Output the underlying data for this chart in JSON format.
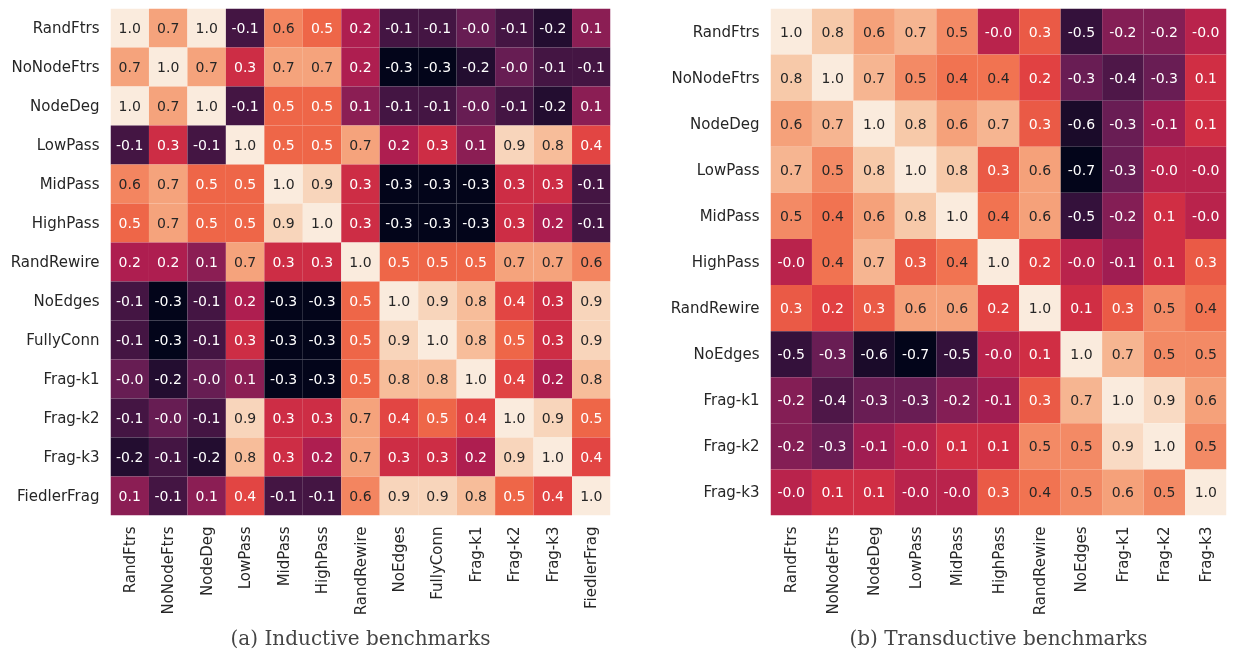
{
  "chart_data": [
    {
      "type": "heatmap",
      "title": "(a) Inductive benchmarks",
      "cell_labels": [
        [
          "1.0",
          "0.7",
          "1.0",
          "-0.1",
          "0.6",
          "0.5",
          "0.2",
          "-0.1",
          "-0.1",
          "-0.0",
          "-0.1",
          "-0.2",
          "0.1"
        ],
        [
          "0.7",
          "1.0",
          "0.7",
          "0.3",
          "0.7",
          "0.7",
          "0.2",
          "-0.3",
          "-0.3",
          "-0.2",
          "-0.0",
          "-0.1",
          "-0.1"
        ],
        [
          "1.0",
          "0.7",
          "1.0",
          "-0.1",
          "0.5",
          "0.5",
          "0.1",
          "-0.1",
          "-0.1",
          "-0.0",
          "-0.1",
          "-0.2",
          "0.1"
        ],
        [
          "-0.1",
          "0.3",
          "-0.1",
          "1.0",
          "0.5",
          "0.5",
          "0.7",
          "0.2",
          "0.3",
          "0.1",
          "0.9",
          "0.8",
          "0.4"
        ],
        [
          "0.6",
          "0.7",
          "0.5",
          "0.5",
          "1.0",
          "0.9",
          "0.3",
          "-0.3",
          "-0.3",
          "-0.3",
          "0.3",
          "0.3",
          "-0.1"
        ],
        [
          "0.5",
          "0.7",
          "0.5",
          "0.5",
          "0.9",
          "1.0",
          "0.3",
          "-0.3",
          "-0.3",
          "-0.3",
          "0.3",
          "0.2",
          "-0.1"
        ],
        [
          "0.2",
          "0.2",
          "0.1",
          "0.7",
          "0.3",
          "0.3",
          "1.0",
          "0.5",
          "0.5",
          "0.5",
          "0.7",
          "0.7",
          "0.6"
        ],
        [
          "-0.1",
          "-0.3",
          "-0.1",
          "0.2",
          "-0.3",
          "-0.3",
          "0.5",
          "1.0",
          "0.9",
          "0.8",
          "0.4",
          "0.3",
          "0.9"
        ],
        [
          "-0.1",
          "-0.3",
          "-0.1",
          "0.3",
          "-0.3",
          "-0.3",
          "0.5",
          "0.9",
          "1.0",
          "0.8",
          "0.5",
          "0.3",
          "0.9"
        ],
        [
          "-0.0",
          "-0.2",
          "-0.0",
          "0.1",
          "-0.3",
          "-0.3",
          "0.5",
          "0.8",
          "0.8",
          "1.0",
          "0.4",
          "0.2",
          "0.8"
        ],
        [
          "-0.1",
          "-0.0",
          "-0.1",
          "0.9",
          "0.3",
          "0.3",
          "0.7",
          "0.4",
          "0.5",
          "0.4",
          "1.0",
          "0.9",
          "0.5"
        ],
        [
          "-0.2",
          "-0.1",
          "-0.2",
          "0.8",
          "0.3",
          "0.2",
          "0.7",
          "0.3",
          "0.3",
          "0.2",
          "0.9",
          "1.0",
          "0.4"
        ],
        [
          "0.1",
          "-0.1",
          "0.1",
          "0.4",
          "-0.1",
          "-0.1",
          "0.6",
          "0.9",
          "0.9",
          "0.8",
          "0.5",
          "0.4",
          "1.0"
        ]
      ],
      "categories": [
        "RandFtrs",
        "NoNodeFtrs",
        "NodeDeg",
        "LowPass",
        "MidPass",
        "HighPass",
        "RandRewire",
        "NoEdges",
        "FullyConn",
        "Frag-k1",
        "Frag-k2",
        "Frag-k3",
        "FiedlerFrag"
      ],
      "y_categories": [
        "RandFtrs",
        "NoNodeFtrs",
        "NodeDeg",
        "LowPass",
        "MidPass",
        "HighPass",
        "RandRewire",
        "NoEdges",
        "FullyConn",
        "Frag-k1",
        "Frag-k2",
        "Frag-k3",
        "FiedlerFrag"
      ],
      "cells": [
        [
          1.0,
          0.7,
          1.0,
          -0.1,
          0.6,
          0.5,
          0.2,
          -0.1,
          -0.1,
          -0.0,
          -0.1,
          -0.2,
          0.1
        ],
        [
          0.7,
          1.0,
          0.7,
          0.3,
          0.7,
          0.7,
          0.2,
          -0.3,
          -0.3,
          -0.2,
          -0.0,
          -0.1,
          -0.1
        ],
        [
          1.0,
          0.7,
          1.0,
          -0.1,
          0.5,
          0.5,
          0.1,
          -0.1,
          -0.1,
          -0.0,
          -0.1,
          -0.2,
          0.1
        ],
        [
          -0.1,
          0.3,
          -0.1,
          1.0,
          0.5,
          0.5,
          0.7,
          0.2,
          0.3,
          0.1,
          0.9,
          0.8,
          0.4
        ],
        [
          0.6,
          0.7,
          0.5,
          0.5,
          1.0,
          0.9,
          0.3,
          -0.3,
          -0.3,
          -0.3,
          0.3,
          0.3,
          -0.1
        ],
        [
          0.5,
          0.7,
          0.5,
          0.5,
          0.9,
          1.0,
          0.3,
          -0.3,
          -0.3,
          -0.3,
          0.3,
          0.2,
          -0.1
        ],
        [
          0.2,
          0.2,
          0.1,
          0.7,
          0.3,
          0.3,
          1.0,
          0.5,
          0.5,
          0.5,
          0.7,
          0.7,
          0.6
        ],
        [
          -0.1,
          -0.3,
          -0.1,
          0.2,
          -0.3,
          -0.3,
          0.5,
          1.0,
          0.9,
          0.8,
          0.4,
          0.3,
          0.9
        ],
        [
          -0.1,
          -0.3,
          -0.1,
          0.3,
          -0.3,
          -0.3,
          0.5,
          0.9,
          1.0,
          0.8,
          0.5,
          0.3,
          0.9
        ],
        [
          -0.0,
          -0.2,
          -0.0,
          0.1,
          -0.3,
          -0.3,
          0.5,
          0.8,
          0.8,
          1.0,
          0.4,
          0.2,
          0.8
        ],
        [
          -0.1,
          -0.0,
          -0.1,
          0.9,
          0.3,
          0.3,
          0.7,
          0.4,
          0.5,
          0.4,
          1.0,
          0.9,
          0.5
        ],
        [
          -0.2,
          -0.1,
          -0.2,
          0.8,
          0.3,
          0.2,
          0.7,
          0.3,
          0.3,
          0.2,
          0.9,
          1.0,
          0.4
        ],
        [
          0.1,
          -0.1,
          0.1,
          0.4,
          -0.1,
          -0.1,
          0.6,
          0.9,
          0.9,
          0.8,
          0.5,
          0.4,
          1.0
        ]
      ]
    },
    {
      "type": "heatmap",
      "title": "(b) Transductive benchmarks",
      "cell_labels": [
        [
          "1.0",
          "0.8",
          "0.6",
          "0.7",
          "0.5",
          "-0.0",
          "0.3",
          "-0.5",
          "-0.2",
          "-0.2",
          "-0.0"
        ],
        [
          "0.8",
          "1.0",
          "0.7",
          "0.5",
          "0.4",
          "0.4",
          "0.2",
          "-0.3",
          "-0.4",
          "-0.3",
          "0.1"
        ],
        [
          "0.6",
          "0.7",
          "1.0",
          "0.8",
          "0.6",
          "0.7",
          "0.3",
          "-0.6",
          "-0.3",
          "-0.1",
          "0.1"
        ],
        [
          "0.7",
          "0.5",
          "0.8",
          "1.0",
          "0.8",
          "0.3",
          "0.6",
          "-0.7",
          "-0.3",
          "-0.0",
          "-0.0"
        ],
        [
          "0.5",
          "0.4",
          "0.6",
          "0.8",
          "1.0",
          "0.4",
          "0.6",
          "-0.5",
          "-0.2",
          "0.1",
          "-0.0"
        ],
        [
          "-0.0",
          "0.4",
          "0.7",
          "0.3",
          "0.4",
          "1.0",
          "0.2",
          "-0.0",
          "-0.1",
          "0.1",
          "0.3"
        ],
        [
          "0.3",
          "0.2",
          "0.3",
          "0.6",
          "0.6",
          "0.2",
          "1.0",
          "0.1",
          "0.3",
          "0.5",
          "0.4"
        ],
        [
          "-0.5",
          "-0.3",
          "-0.6",
          "-0.7",
          "-0.5",
          "-0.0",
          "0.1",
          "1.0",
          "0.7",
          "0.5",
          "0.5"
        ],
        [
          "-0.2",
          "-0.4",
          "-0.3",
          "-0.3",
          "-0.2",
          "-0.1",
          "0.3",
          "0.7",
          "1.0",
          "0.9",
          "0.6"
        ],
        [
          "-0.2",
          "-0.3",
          "-0.1",
          "-0.0",
          "0.1",
          "0.1",
          "0.5",
          "0.5",
          "0.9",
          "1.0",
          "0.5"
        ],
        [
          "-0.0",
          "0.1",
          "0.1",
          "-0.0",
          "-0.0",
          "0.3",
          "0.4",
          "0.5",
          "0.6",
          "0.5",
          "1.0"
        ]
      ],
      "categories": [
        "RandFtrs",
        "NoNodeFtrs",
        "NodeDeg",
        "LowPass",
        "MidPass",
        "HighPass",
        "RandRewire",
        "NoEdges",
        "Frag-k1",
        "Frag-k2",
        "Frag-k3"
      ],
      "y_categories": [
        "RandFtrs",
        "NoNodeFtrs",
        "NodeDeg",
        "LowPass",
        "MidPass",
        "HighPass",
        "RandRewire",
        "NoEdges",
        "Frag-k1",
        "Frag-k2",
        "Frag-k3"
      ],
      "cells": [
        [
          1.0,
          0.8,
          0.6,
          0.7,
          0.5,
          -0.0,
          0.3,
          -0.5,
          -0.2,
          -0.2,
          -0.0
        ],
        [
          0.8,
          1.0,
          0.7,
          0.5,
          0.4,
          0.4,
          0.2,
          -0.3,
          -0.4,
          -0.3,
          0.1
        ],
        [
          0.6,
          0.7,
          1.0,
          0.8,
          0.6,
          0.7,
          0.3,
          -0.6,
          -0.3,
          -0.1,
          0.1
        ],
        [
          0.7,
          0.5,
          0.8,
          1.0,
          0.8,
          0.3,
          0.6,
          -0.7,
          -0.3,
          -0.0,
          -0.0
        ],
        [
          0.5,
          0.4,
          0.6,
          0.8,
          1.0,
          0.4,
          0.6,
          -0.5,
          -0.2,
          0.1,
          -0.0
        ],
        [
          -0.0,
          0.4,
          0.7,
          0.3,
          0.4,
          1.0,
          0.2,
          -0.0,
          -0.1,
          0.1,
          0.3
        ],
        [
          0.3,
          0.2,
          0.3,
          0.6,
          0.6,
          0.2,
          1.0,
          0.1,
          0.3,
          0.5,
          0.4
        ],
        [
          -0.5,
          -0.3,
          -0.6,
          -0.7,
          -0.5,
          -0.0,
          0.1,
          1.0,
          0.7,
          0.5,
          0.5
        ],
        [
          -0.2,
          -0.4,
          -0.3,
          -0.3,
          -0.2,
          -0.1,
          0.3,
          0.7,
          1.0,
          0.9,
          0.6
        ],
        [
          -0.2,
          -0.3,
          -0.1,
          -0.0,
          0.1,
          0.1,
          0.5,
          0.5,
          0.9,
          1.0,
          0.5
        ],
        [
          -0.0,
          0.1,
          0.1,
          -0.0,
          -0.0,
          0.3,
          0.4,
          0.5,
          0.6,
          0.5,
          1.0
        ]
      ]
    }
  ]
}
